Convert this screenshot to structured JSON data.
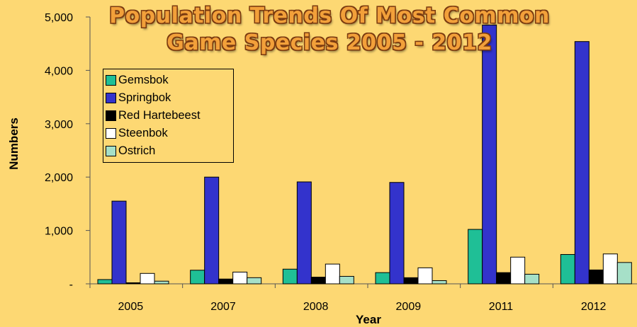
{
  "chart_data": {
    "type": "bar",
    "title_lines": [
      "Population Trends Of Most Common",
      "Game Species 2005 - 2012"
    ],
    "xlabel": "Year",
    "ylabel": "Numbers",
    "categories": [
      "2005",
      "2007",
      "2008",
      "2009",
      "2011",
      "2012"
    ],
    "ylim": [
      0,
      5000
    ],
    "yticks": [
      "-",
      "1,000",
      "2,000",
      "3,000",
      "4,000",
      "5,000"
    ],
    "ytick_values": [
      0,
      1000,
      2000,
      3000,
      4000,
      5000
    ],
    "legend_position": "top-left",
    "grid": false,
    "series": [
      {
        "name": "Gemsbok",
        "color": "#1fbf96",
        "values": [
          80,
          255,
          275,
          210,
          1020,
          550
        ]
      },
      {
        "name": "Springbok",
        "color": "#3333cc",
        "values": [
          1550,
          2000,
          1910,
          1900,
          4850,
          4540
        ]
      },
      {
        "name": "Red Hartebeest",
        "color": "#000000",
        "values": [
          20,
          90,
          125,
          115,
          210,
          260
        ]
      },
      {
        "name": "Steenbok",
        "color": "#ffffff",
        "values": [
          195,
          220,
          370,
          300,
          500,
          560
        ]
      },
      {
        "name": "Ostrich",
        "color": "#a6e0c8",
        "values": [
          50,
          115,
          140,
          60,
          180,
          400
        ]
      }
    ]
  }
}
